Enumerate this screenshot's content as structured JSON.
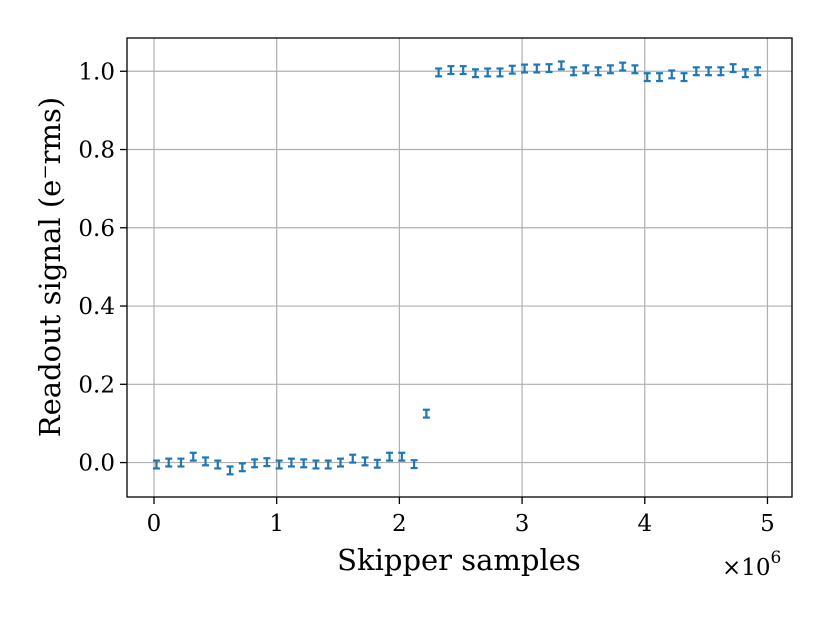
{
  "chart_data": {
    "type": "scatter",
    "xlabel": "Skipper samples",
    "ylabel": "Readout signal (e⁻rms)",
    "x_offset_text": "×10",
    "x_offset_exponent": "6",
    "xlim": [
      -0.22,
      5.2
    ],
    "ylim": [
      -0.088,
      1.085
    ],
    "x_ticks": [
      0,
      1,
      2,
      3,
      4,
      5
    ],
    "x_tick_labels": [
      "0",
      "1",
      "2",
      "3",
      "4",
      "5"
    ],
    "y_ticks": [
      0.0,
      0.2,
      0.4,
      0.6,
      0.8,
      1.0
    ],
    "y_tick_labels": [
      "0.0",
      "0.2",
      "0.4",
      "0.6",
      "0.8",
      "1.0"
    ],
    "grid": true,
    "marker_color": "#1f77b4",
    "error_bar": 0.01,
    "series": [
      {
        "x": [
          0.02,
          0.12,
          0.22,
          0.32,
          0.42,
          0.52,
          0.62,
          0.72,
          0.82,
          0.92,
          1.02,
          1.12,
          1.22,
          1.32,
          1.42,
          1.52,
          1.62,
          1.72,
          1.82,
          1.92,
          2.02,
          2.12,
          2.22,
          2.32,
          2.42,
          2.52,
          2.62,
          2.72,
          2.82,
          2.92,
          3.02,
          3.12,
          3.22,
          3.32,
          3.42,
          3.52,
          3.62,
          3.72,
          3.82,
          3.92,
          4.02,
          4.12,
          4.22,
          4.32,
          4.42,
          4.52,
          4.62,
          4.72,
          4.82,
          4.92
        ],
        "y": [
          -0.005,
          0.0,
          0.0,
          0.015,
          0.003,
          -0.005,
          -0.02,
          -0.012,
          -0.002,
          0.001,
          -0.005,
          0.0,
          -0.002,
          -0.005,
          -0.005,
          0.0,
          0.01,
          0.003,
          -0.003,
          0.015,
          0.015,
          -0.004,
          0.125,
          0.997,
          1.003,
          1.003,
          0.995,
          0.997,
          0.997,
          1.004,
          1.007,
          1.007,
          1.008,
          1.015,
          1.0,
          1.005,
          1.0,
          1.005,
          1.012,
          1.005,
          0.985,
          0.985,
          0.992,
          0.985,
          1.0,
          1.0,
          1.0,
          1.008,
          0.995,
          1.0
        ]
      }
    ]
  }
}
